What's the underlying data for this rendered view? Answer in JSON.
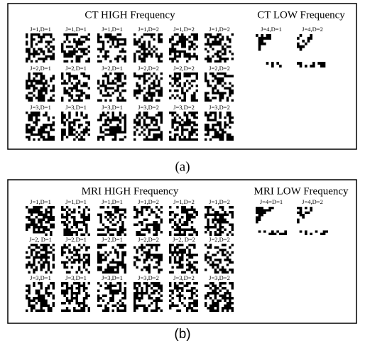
{
  "panels": [
    {
      "high_title": "CT HIGH Frequency",
      "low_title": "CT LOW Frequency",
      "high_labels": [
        [
          "J=1,D=1",
          "J=1,D=1",
          "J=1,D=1",
          "J=1,D=2",
          "J=1,D=2",
          "J=1,D=2"
        ],
        [
          "J=2,D=1",
          "J=2,D=1",
          "J=2,D=1",
          "J=2,D=2",
          "J=2,D=2",
          "J=2,D=2"
        ],
        [
          "J=3,D=1",
          "J=3,D=1",
          "J=3,D=1",
          "J=3,D=2",
          "J=3,D=2",
          "J=3,D=2"
        ]
      ],
      "low_labels": [
        "J=4,D=1",
        "J=4,D=2"
      ],
      "caption": "(a)"
    },
    {
      "high_title": "MRI HIGH Frequency",
      "low_title": "MRI LOW Frequency",
      "high_labels": [
        [
          "J=1,D=1",
          "J=1,D=1",
          "J=1,D=1",
          "J=1,D=2",
          "J=1,D=2",
          "J=1,D=2"
        ],
        [
          "J=2, D=1",
          "J=2,D=1",
          "J=2,D=1",
          "J=2,D=2",
          "J=2, D=2",
          "J=2,D=2"
        ],
        [
          "J=3,D=1",
          "J=3,D=1",
          "J=3,D=1",
          "J=3,D=2",
          "J=3,D=2",
          "J=3,D=2"
        ]
      ],
      "low_labels": [
        "J=4=D=1",
        "J=4,D=2"
      ],
      "caption": "(b)"
    }
  ]
}
